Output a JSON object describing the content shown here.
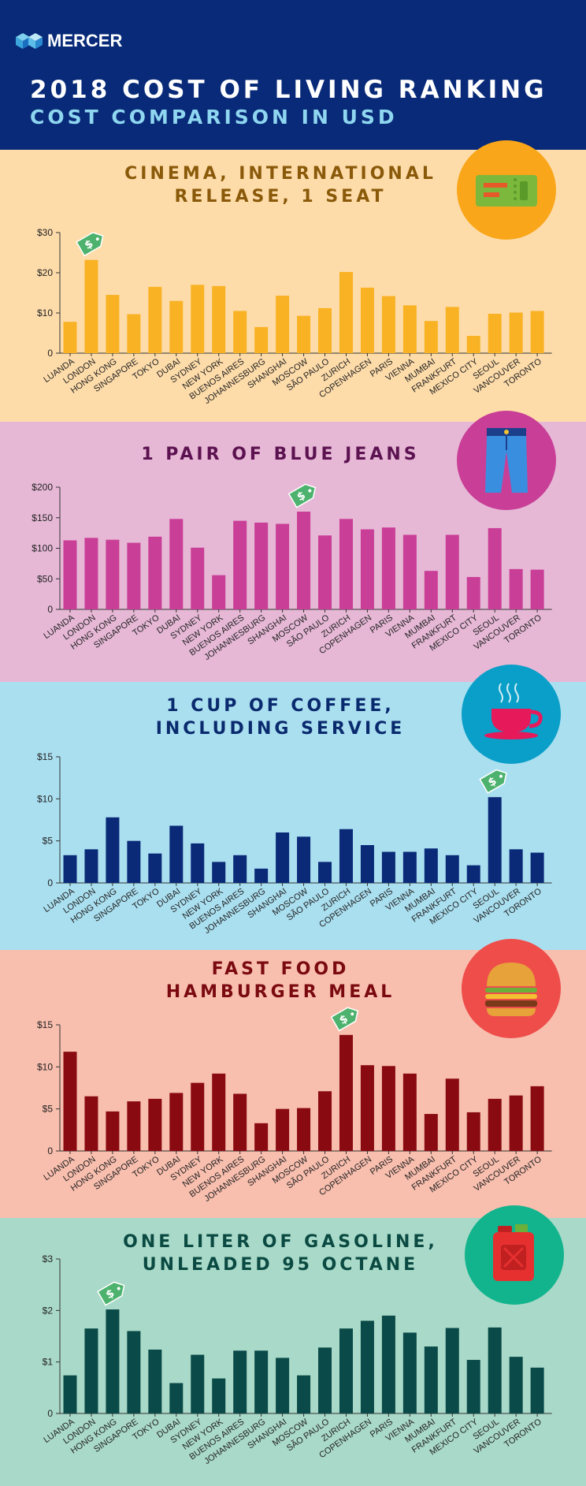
{
  "header": {
    "brand": "MERCER",
    "title": "2018 COST OF LIVING RANKING",
    "subtitle": "COST COMPARISON IN USD"
  },
  "colors": {
    "header_bg": "#082a78",
    "title": "#ffffff",
    "subtitle": "#8fd6f0",
    "tag": "#4cb26d"
  },
  "icons": [
    "mercer-logo-icon",
    "ticket-icon",
    "jeans-icon",
    "coffee-cup-icon",
    "hamburger-icon",
    "gas-can-icon",
    "price-tag-icon"
  ],
  "sections": [
    {
      "id": "cinema",
      "title_lines": [
        "CINEMA, INTERNATIONAL",
        "RELEASE, 1 SEAT"
      ],
      "bg": "#fedcaa",
      "title_color": "#8a5a0a",
      "bar_color": "#f9b224",
      "circle_color": "#f9a61a",
      "icon": "ticket-icon"
    },
    {
      "id": "jeans",
      "title_lines": [
        "1 PAIR OF BLUE JEANS"
      ],
      "bg": "#e6b8d6",
      "title_color": "#5c1250",
      "bar_color": "#c93e96",
      "circle_color": "#c93e96",
      "icon": "jeans-icon"
    },
    {
      "id": "coffee",
      "title_lines": [
        "1 CUP OF COFFEE,",
        "INCLUDING SERVICE"
      ],
      "bg": "#aadff0",
      "title_color": "#0a2a6e",
      "bar_color": "#0a2a78",
      "circle_color": "#0a9fc8",
      "icon": "coffee-cup-icon"
    },
    {
      "id": "hamburger",
      "title_lines": [
        "FAST FOOD",
        "HAMBURGER MEAL"
      ],
      "bg": "#f8beae",
      "title_color": "#7a0a10",
      "bar_color": "#8a0a12",
      "circle_color": "#ee4d4a",
      "icon": "hamburger-icon"
    },
    {
      "id": "gasoline",
      "title_lines": [
        "ONE LITER OF GASOLINE,",
        "UNLEADED 95 OCTANE"
      ],
      "bg": "#a9d9c8",
      "title_color": "#0a4a42",
      "bar_color": "#0a4a48",
      "circle_color": "#12b48e",
      "icon": "gas-can-icon"
    }
  ],
  "chart_data": [
    {
      "type": "bar",
      "title": "CINEMA, INTERNATIONAL RELEASE, 1 SEAT",
      "categories": [
        "LUANDA",
        "LONDON",
        "HONG KONG",
        "SINGAPORE",
        "TOKYO",
        "DUBAI",
        "SYDNEY",
        "NEW YORK",
        "BUENOS AIRES",
        "JOHANNESBURG",
        "SHANGHAI",
        "MOSCOW",
        "SÃO PAULO",
        "ZURICH",
        "COPENHAGEN",
        "PARIS",
        "VIENNA",
        "MUMBAI",
        "FRANKFURT",
        "MEXICO CITY",
        "SEOUL",
        "VANCOUVER",
        "TORONTO"
      ],
      "values": [
        7.8,
        23.2,
        14.5,
        9.7,
        16.5,
        13.0,
        17.0,
        16.7,
        10.5,
        6.5,
        14.3,
        9.3,
        11.2,
        20.2,
        16.3,
        14.2,
        11.9,
        8.0,
        11.5,
        4.3,
        9.8,
        10.1,
        10.5
      ],
      "yticks": [
        0,
        10,
        20,
        30
      ],
      "ytick_labels": [
        "0",
        "$10",
        "$20",
        "$30"
      ],
      "ylim": [
        0,
        30
      ],
      "highlight": "LONDON",
      "xlabel": "",
      "ylabel": ""
    },
    {
      "type": "bar",
      "title": "1 PAIR OF BLUE JEANS",
      "categories": [
        "LUANDA",
        "LONDON",
        "HONG KONG",
        "SINGAPORE",
        "TOKYO",
        "DUBAI",
        "SYDNEY",
        "NEW YORK",
        "BUENOS AIRES",
        "JOHANNESBURG",
        "SHANGHAI",
        "MOSCOW",
        "SÃO PAULO",
        "ZURICH",
        "COPENHAGEN",
        "PARIS",
        "VIENNA",
        "MUMBAI",
        "FRANKFURT",
        "MEXICO CITY",
        "SEOUL",
        "VANCOUVER",
        "TORONTO"
      ],
      "values": [
        113,
        117,
        114,
        109,
        119,
        148,
        101,
        56,
        145,
        142,
        140,
        160,
        121,
        148,
        131,
        134,
        122,
        63,
        122,
        53,
        133,
        66,
        65
      ],
      "yticks": [
        0,
        50,
        100,
        150,
        200
      ],
      "ytick_labels": [
        "0",
        "$50",
        "$100",
        "$150",
        "$200"
      ],
      "ylim": [
        0,
        200
      ],
      "highlight": "MOSCOW",
      "xlabel": "",
      "ylabel": ""
    },
    {
      "type": "bar",
      "title": "1 CUP OF COFFEE, INCLUDING SERVICE",
      "categories": [
        "LUANDA",
        "LONDON",
        "HONG KONG",
        "SINGAPORE",
        "TOKYO",
        "DUBAI",
        "SYDNEY",
        "NEW YORK",
        "BUENOS AIRES",
        "JOHANNESBURG",
        "SHANGHAI",
        "MOSCOW",
        "SÃO PAULO",
        "ZURICH",
        "COPENHAGEN",
        "PARIS",
        "VIENNA",
        "MUMBAI",
        "FRANKFURT",
        "MEXICO CITY",
        "SEOUL",
        "VANCOUVER",
        "TORONTO"
      ],
      "values": [
        3.3,
        4.0,
        7.8,
        5.0,
        3.5,
        6.8,
        4.7,
        2.5,
        3.3,
        1.7,
        6.0,
        5.5,
        2.5,
        6.4,
        4.5,
        3.7,
        3.7,
        4.1,
        3.3,
        2.1,
        10.2,
        4.0,
        3.6
      ],
      "yticks": [
        0,
        5,
        10,
        15
      ],
      "ytick_labels": [
        "0",
        "$5",
        "$10",
        "$15"
      ],
      "ylim": [
        0,
        15
      ],
      "highlight": "SEOUL",
      "xlabel": "",
      "ylabel": ""
    },
    {
      "type": "bar",
      "title": "FAST FOOD HAMBURGER MEAL",
      "categories": [
        "LUANDA",
        "LONDON",
        "HONG KONG",
        "SINGAPORE",
        "TOKYO",
        "DUBAI",
        "SYDNEY",
        "NEW YORK",
        "BUENOS AIRES",
        "JOHANNESBURG",
        "SHANGHAI",
        "MOSCOW",
        "SÃO PAULO",
        "ZURICH",
        "COPENHAGEN",
        "PARIS",
        "VIENNA",
        "MUMBAI",
        "FRANKFURT",
        "MEXICO CITY",
        "SEOUL",
        "VANCOUVER",
        "TORONTO"
      ],
      "values": [
        11.8,
        6.5,
        4.7,
        5.9,
        6.2,
        6.9,
        8.1,
        9.2,
        6.8,
        3.3,
        5.0,
        5.1,
        7.1,
        13.8,
        10.2,
        10.1,
        9.2,
        4.4,
        8.6,
        4.6,
        6.2,
        6.6,
        7.7
      ],
      "yticks": [
        0,
        5,
        10,
        15
      ],
      "ytick_labels": [
        "0",
        "$5",
        "$10",
        "$15"
      ],
      "ylim": [
        0,
        15
      ],
      "highlight": "ZURICH",
      "xlabel": "",
      "ylabel": ""
    },
    {
      "type": "bar",
      "title": "ONE LITER OF GASOLINE, UNLEADED 95 OCTANE",
      "categories": [
        "LUANDA",
        "LONDON",
        "HONG KONG",
        "SINGAPORE",
        "TOKYO",
        "DUBAI",
        "SYDNEY",
        "NEW YORK",
        "BUENOS AIRES",
        "JOHANNESBURG",
        "SHANGHAI",
        "MOSCOW",
        "SÃO PAULO",
        "ZURICH",
        "COPENHAGEN",
        "PARIS",
        "VIENNA",
        "MUMBAI",
        "FRANKFURT",
        "MEXICO CITY",
        "SEOUL",
        "VANCOUVER",
        "TORONTO"
      ],
      "values": [
        0.74,
        1.65,
        2.02,
        1.6,
        1.24,
        0.59,
        1.14,
        0.68,
        1.22,
        1.22,
        1.08,
        0.74,
        1.28,
        1.65,
        1.8,
        1.9,
        1.57,
        1.3,
        1.66,
        1.04,
        1.67,
        1.1,
        0.89
      ],
      "yticks": [
        0,
        1,
        2,
        3
      ],
      "ytick_labels": [
        "0",
        "$1",
        "$2",
        "$3"
      ],
      "ylim": [
        0,
        3
      ],
      "highlight": "HONG KONG",
      "xlabel": "",
      "ylabel": ""
    }
  ]
}
